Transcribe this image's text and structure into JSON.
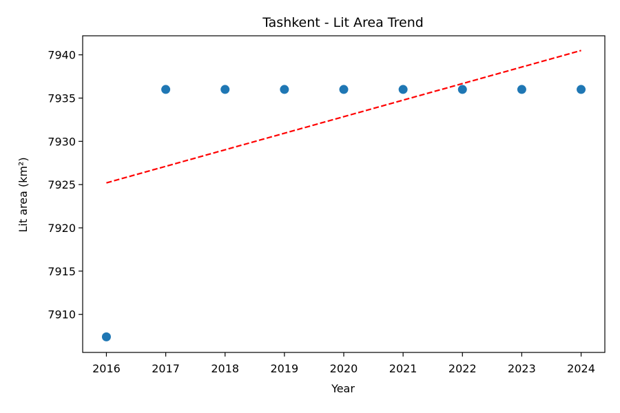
{
  "chart_data": {
    "type": "scatter",
    "title": "Tashkent - Lit Area Trend",
    "xlabel": "Year",
    "ylabel": "Lit area (km²)",
    "x": [
      2016,
      2017,
      2018,
      2019,
      2020,
      2021,
      2022,
      2023,
      2024
    ],
    "series": [
      {
        "values": [
          7907.4,
          7936,
          7936,
          7936,
          7936,
          7936,
          7936,
          7936,
          7936
        ],
        "color": "#1f77b4",
        "marker": "circle"
      }
    ],
    "trend_line": {
      "style": "dashed",
      "color": "#ff0000",
      "x": [
        2016,
        2024
      ],
      "y": [
        7925.2,
        7940.5
      ]
    },
    "xlim": [
      2015.6,
      2024.4
    ],
    "ylim": [
      7905.6,
      7942.2
    ],
    "xticks": [
      2016,
      2017,
      2018,
      2019,
      2020,
      2021,
      2022,
      2023,
      2024
    ],
    "yticks": [
      7910,
      7915,
      7920,
      7925,
      7930,
      7935,
      7940
    ],
    "grid": false,
    "legend": false
  }
}
